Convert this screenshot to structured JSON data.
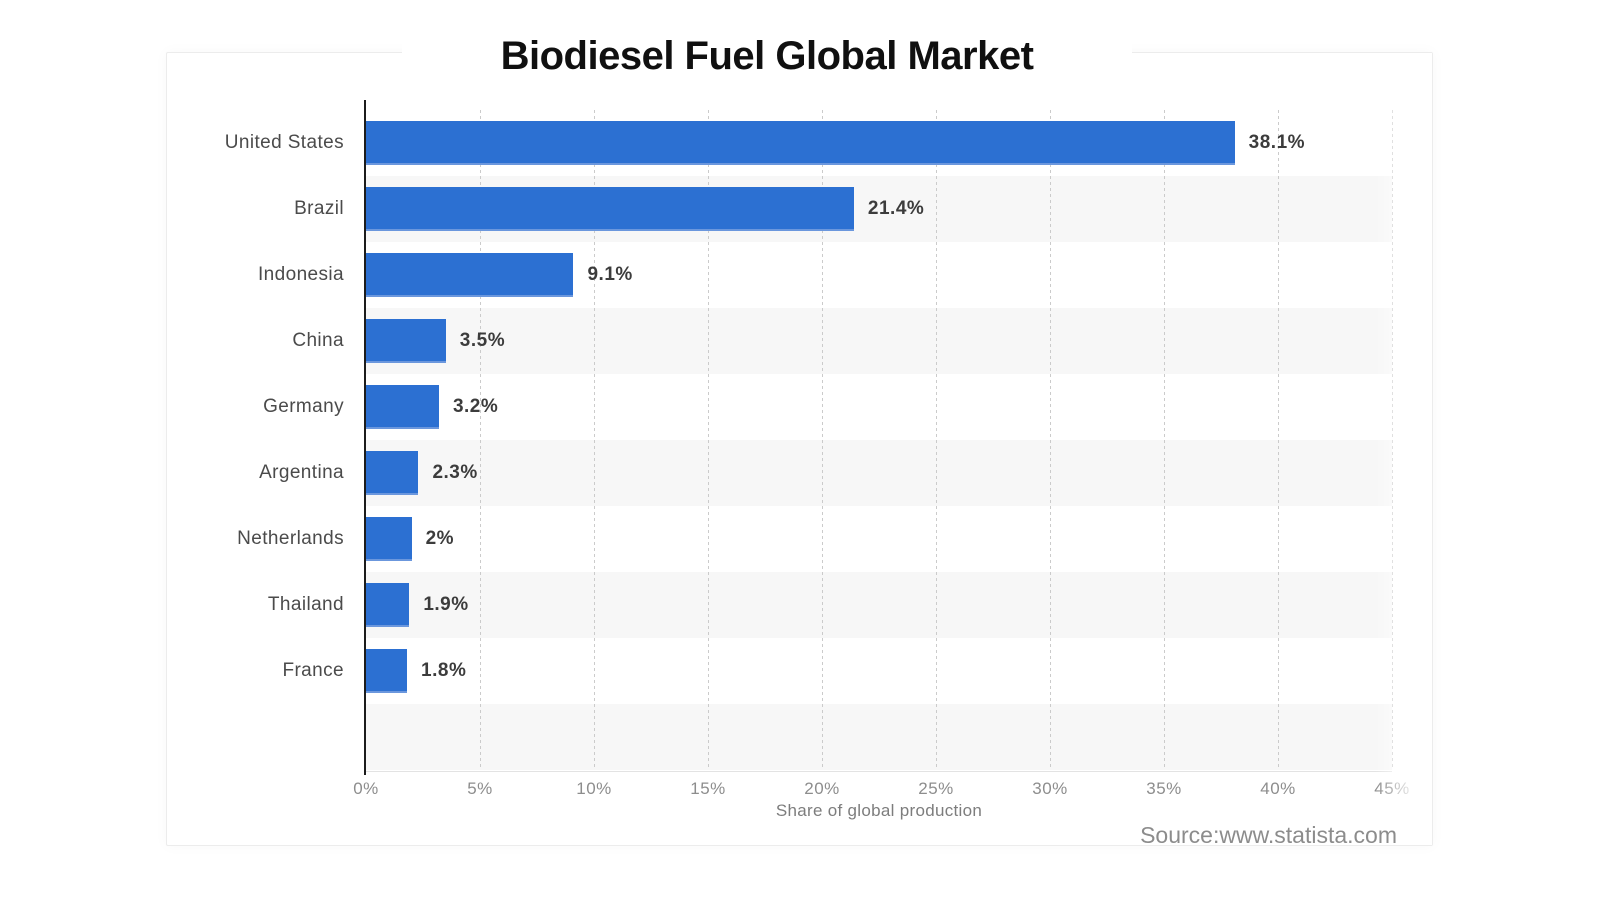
{
  "title": "Biodiesel Fuel Global Market",
  "source": "Source:www.statista.com",
  "chart_data": {
    "type": "bar",
    "orientation": "horizontal",
    "title": "Biodiesel Fuel Global Market",
    "categories": [
      "United States",
      "Brazil",
      "Indonesia",
      "China",
      "Germany",
      "Argentina",
      "Netherlands",
      "Thailand",
      "France"
    ],
    "values": [
      38.1,
      21.4,
      9.1,
      3.5,
      3.2,
      2.3,
      2,
      1.9,
      1.8
    ],
    "value_labels": [
      "38.1%",
      "21.4%",
      "9.1%",
      "3.5%",
      "3.2%",
      "2.3%",
      "2%",
      "1.9%",
      "1.8%"
    ],
    "xlabel": "Share of global production",
    "xlim": [
      0,
      45
    ],
    "x_ticks": [
      "0%",
      "5%",
      "10%",
      "15%",
      "20%",
      "25%",
      "30%",
      "35%",
      "40%",
      "45%"
    ],
    "grid": "vertical-dashed",
    "legend": "none",
    "band_colors": [
      "#ffffff",
      "#f7f7f7"
    ],
    "bar_color": "#2c70d2",
    "bar_edge_color": "#6b97dd",
    "empty_trailing_row": true
  }
}
